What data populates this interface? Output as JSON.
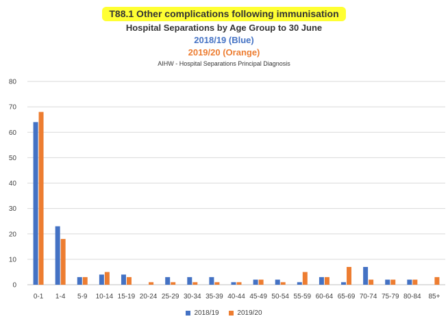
{
  "header": {
    "title": "T88.1 Other complications following immunisation",
    "subtitle": "Hospital Separations by Age Group to 30 June",
    "series_note_1": "2018/19 (Blue)",
    "series_note_2": "2019/20 (Orange)",
    "source": "AIHW - Hospital Separations Principal Diagnosis"
  },
  "colors": {
    "highlight": "#ffff33",
    "blue": "#4472c4",
    "orange": "#ed7d31",
    "grid": "#d9d9d9"
  },
  "legend": {
    "series1": "2018/19",
    "series2": "2019/20"
  },
  "chart_data": {
    "type": "bar",
    "title": "T88.1 Other complications following immunisation",
    "subtitle": "Hospital Separations by Age Group to 30 June",
    "categories": [
      "0-1",
      "1-4",
      "5-9",
      "10-14",
      "15-19",
      "20-24",
      "25-29",
      "30-34",
      "35-39",
      "40-44",
      "45-49",
      "50-54",
      "55-59",
      "60-64",
      "65-69",
      "70-74",
      "75-79",
      "80-84",
      "85+"
    ],
    "series": [
      {
        "name": "2018/19",
        "color": "#4472c4",
        "values": [
          64,
          23,
          3,
          4,
          4,
          0,
          3,
          3,
          3,
          1,
          2,
          2,
          1,
          3,
          1,
          7,
          2,
          2,
          0
        ]
      },
      {
        "name": "2019/20",
        "color": "#ed7d31",
        "values": [
          68,
          18,
          3,
          5,
          3,
          1,
          1,
          1,
          1,
          1,
          2,
          1,
          5,
          3,
          7,
          2,
          2,
          2,
          3
        ]
      }
    ],
    "ylim": [
      0,
      80
    ],
    "yticks": [
      0,
      10,
      20,
      30,
      40,
      50,
      60,
      70,
      80
    ],
    "grid": true,
    "legend_position": "bottom"
  }
}
